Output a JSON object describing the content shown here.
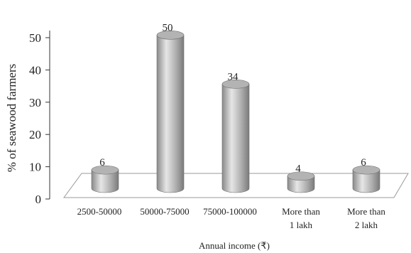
{
  "chart_data": {
    "type": "bar",
    "style": "3d-cylinder",
    "title": "",
    "xlabel": "Annual income (₹)",
    "ylabel": "% of seawood farmers",
    "categories": [
      [
        "2500-50000"
      ],
      [
        "50000-75000"
      ],
      [
        "75000-100000"
      ],
      [
        "More than",
        "1 lakh"
      ],
      [
        "More than",
        "2 lakh"
      ]
    ],
    "values": [
      6,
      50,
      34,
      4,
      6
    ],
    "data_labels": [
      "6",
      "50",
      "34",
      "4",
      "6"
    ],
    "yticks": [
      "0",
      "10",
      "20",
      "30",
      "40",
      "50"
    ],
    "ylim": [
      0,
      50
    ],
    "grid": false,
    "colors": {
      "bar_light": "#e4e4e4",
      "bar_mid": "#b3b3b3",
      "bar_dark": "#7d7d7d",
      "floor_stroke": "#999999",
      "axis": "#333333"
    }
  }
}
